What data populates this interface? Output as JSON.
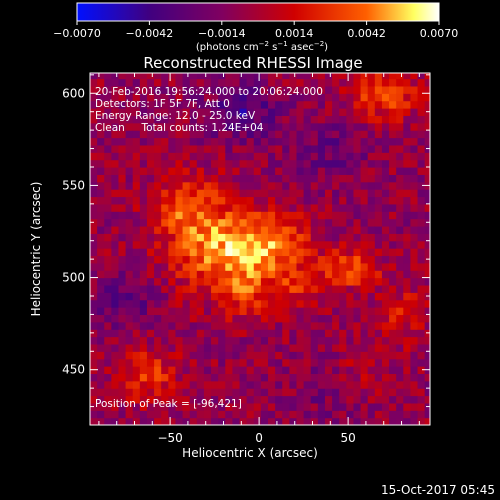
{
  "title": "Reconstructed RHESSI Image",
  "colorbar": {
    "ticks": [
      "−0.0070",
      "−0.0042",
      "−0.0014",
      "0.0014",
      "0.0042",
      "0.0070"
    ],
    "units_prefix": "(photons cm",
    "units_sup1": "−2",
    "units_mid1": " s",
    "units_sup2": "−1",
    "units_mid2": " asec",
    "units_sup3": "−2",
    "units_suffix": ")"
  },
  "annotations": {
    "time_range": "20-Feb-2016 19:56:24.000 to 20:06:24.000",
    "detectors": "Detectors: 1F 5F 7F, Att 0",
    "energy": "Energy Range: 12.0 - 25.0 keV",
    "algorithm": "Clean     Total counts: 1.24E+04",
    "peak": "Position of Peak = [-96,421]"
  },
  "footer_timestamp": "15-Oct-2017 05:45",
  "chart_data": {
    "type": "heatmap",
    "title": "Reconstructed RHESSI Image",
    "xlabel": "Heliocentric X (arcsec)",
    "ylabel": "Heliocentric Y (arcsec)",
    "xlim": [
      -95,
      96
    ],
    "ylim": [
      420,
      611
    ],
    "x_ticks": [
      -50,
      0,
      50
    ],
    "y_ticks": [
      450,
      500,
      550,
      600
    ],
    "color_range": [
      -0.007,
      0.007
    ],
    "colormap": [
      "#0010ff",
      "#400080",
      "#800060",
      "#d00000",
      "#ff6000",
      "#ffff60",
      "#ffffff"
    ],
    "sources": [
      {
        "x": -18,
        "y": 515,
        "peak": 0.0058,
        "sx": 22,
        "sy": 16
      },
      {
        "x": -40,
        "y": 540,
        "peak": 0.0036,
        "sx": 14,
        "sy": 12
      },
      {
        "x": 12,
        "y": 520,
        "peak": 0.0034,
        "sx": 12,
        "sy": 10
      },
      {
        "x": 50,
        "y": 505,
        "peak": 0.0044,
        "sx": 12,
        "sy": 7
      },
      {
        "x": -8,
        "y": 490,
        "peak": 0.0024,
        "sx": 10,
        "sy": 10
      },
      {
        "x": 20,
        "y": 496,
        "peak": 0.0022,
        "sx": 10,
        "sy": 8
      },
      {
        "x": 70,
        "y": 600,
        "peak": 0.004,
        "sx": 14,
        "sy": 10
      },
      {
        "x": -62,
        "y": 447,
        "peak": 0.0034,
        "sx": 12,
        "sy": 10
      },
      {
        "x": 80,
        "y": 480,
        "peak": 0.0022,
        "sx": 10,
        "sy": 12
      },
      {
        "x": 58,
        "y": 448,
        "peak": 0.0018,
        "sx": 10,
        "sy": 10
      },
      {
        "x": -10,
        "y": 590,
        "peak": -0.003,
        "sx": 14,
        "sy": 10
      },
      {
        "x": -75,
        "y": 488,
        "peak": -0.0022,
        "sx": 12,
        "sy": 10
      },
      {
        "x": 40,
        "y": 570,
        "peak": -0.0016,
        "sx": 16,
        "sy": 12
      },
      {
        "x": 40,
        "y": 440,
        "peak": -0.0012,
        "sx": 14,
        "sy": 12
      }
    ]
  }
}
